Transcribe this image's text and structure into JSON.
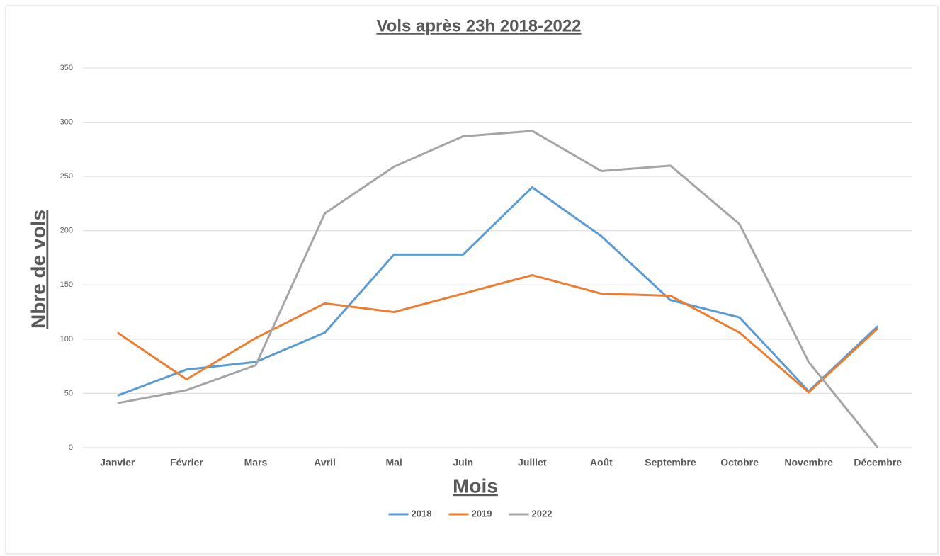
{
  "chart_data": {
    "type": "line",
    "title": "Vols après 23h 2018-2022",
    "x_label": "Mois",
    "y_label": "Nbre de vols",
    "categories": [
      "Janvier",
      "Février",
      "Mars",
      "Avril",
      "Mai",
      "Juin",
      "Juillet",
      "Août",
      "Septembre",
      "Octobre",
      "Novembre",
      "Décembre"
    ],
    "series": [
      {
        "name": "2018",
        "color": "#5b9bd5",
        "values": [
          48,
          72,
          79,
          106,
          178,
          178,
          240,
          195,
          136,
          120,
          52,
          112
        ]
      },
      {
        "name": "2019",
        "color": "#ed7d31",
        "values": [
          106,
          63,
          101,
          133,
          125,
          142,
          159,
          142,
          140,
          106,
          51,
          110
        ]
      },
      {
        "name": "2022",
        "color": "#a5a5a5",
        "values": [
          41,
          53,
          76,
          216,
          259,
          287,
          292,
          255,
          260,
          206,
          79,
          0
        ]
      }
    ],
    "ylim": [
      0,
      350
    ],
    "yticks": [
      0,
      50,
      100,
      150,
      200,
      250,
      300,
      350
    ],
    "grid": true,
    "legend": "bottom"
  }
}
